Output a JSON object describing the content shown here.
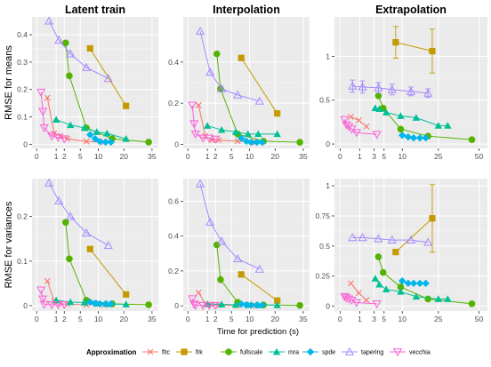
{
  "figure": {
    "xlabel": "Time for prediction (s)",
    "legend_title": "Approximation",
    "legend_position": "bottom"
  },
  "methods": [
    {
      "key": "fitc",
      "label": "fitc",
      "color": "#F8766D",
      "shape": "cross"
    },
    {
      "key": "frk",
      "label": "frk",
      "color": "#C49A00",
      "shape": "square"
    },
    {
      "key": "fullscale",
      "label": "fullscale",
      "color": "#53B400",
      "shape": "circle"
    },
    {
      "key": "mra",
      "label": "mra",
      "color": "#00C094",
      "shape": "triangle"
    },
    {
      "key": "spde",
      "label": "spde",
      "color": "#00B6EB",
      "shape": "diamond"
    },
    {
      "key": "tapering",
      "label": "tapering",
      "color": "#A58AFF",
      "shape": "triangle-open"
    },
    {
      "key": "vecchia",
      "label": "vecchia",
      "color": "#FB61D7",
      "shape": "triangle-down-open"
    }
  ],
  "chart_data": [
    {
      "type": "line",
      "col_title": "Latent train",
      "row_title": "RMSE for means",
      "x_scale": "sqrt",
      "x_ticks": [
        0,
        1,
        2,
        5,
        10,
        20,
        35
      ],
      "xlim": [
        0,
        36
      ],
      "y_ticks": [
        0.0,
        0.1,
        0.2,
        0.3,
        0.4
      ],
      "ylim": [
        -0.015,
        0.465
      ],
      "series": [
        {
          "method": "fitc",
          "x": [
            0.3,
            0.8,
            1.5,
            2.5,
            6.5,
            12
          ],
          "y": [
            0.17,
            0.04,
            0.03,
            0.02,
            0.01,
            0.008
          ]
        },
        {
          "method": "frk",
          "x": [
            7.5,
            21
          ],
          "y": [
            0.35,
            0.14
          ]
        },
        {
          "method": "fullscale",
          "x": [
            2.2,
            2.8,
            6.5,
            15,
            33
          ],
          "y": [
            0.37,
            0.25,
            0.06,
            0.02,
            0.008
          ]
        },
        {
          "method": "mra",
          "x": [
            1.0,
            3.0,
            6.0,
            9.5,
            13,
            21
          ],
          "y": [
            0.09,
            0.07,
            0.06,
            0.045,
            0.04,
            0.02
          ]
        },
        {
          "method": "spde",
          "x": [
            7.5,
            9,
            10.5,
            12.5,
            14.5
          ],
          "y": [
            0.035,
            0.02,
            0.01,
            0.008,
            0.008
          ]
        },
        {
          "method": "tapering",
          "x": [
            0.4,
            1.3,
            3.0,
            6.5,
            13.5
          ],
          "y": [
            0.45,
            0.38,
            0.33,
            0.28,
            0.24
          ]
        },
        {
          "method": "vecchia",
          "x": [
            0.05,
            0.1,
            0.15,
            0.6,
            1.2,
            2.0
          ],
          "y": [
            0.19,
            0.12,
            0.06,
            0.03,
            0.025,
            0.02
          ]
        }
      ]
    },
    {
      "type": "line",
      "col_title": "Interpolation",
      "row_title": "",
      "x_scale": "sqrt",
      "x_ticks": [
        0,
        1,
        2,
        5,
        10,
        20,
        35
      ],
      "xlim": [
        0,
        36
      ],
      "y_ticks": [
        0.0,
        0.2,
        0.4
      ],
      "ylim": [
        -0.02,
        0.62
      ],
      "series": [
        {
          "method": "fitc",
          "x": [
            0.3,
            0.8,
            1.5,
            2.5,
            6.5,
            12
          ],
          "y": [
            0.19,
            0.04,
            0.02,
            0.02,
            0.015,
            0.01
          ]
        },
        {
          "method": "frk",
          "x": [
            7.5,
            21
          ],
          "y": [
            0.42,
            0.15
          ]
        },
        {
          "method": "fullscale",
          "x": [
            2.2,
            2.8,
            6.5,
            15,
            33
          ],
          "y": [
            0.44,
            0.27,
            0.05,
            0.015,
            0.01
          ]
        },
        {
          "method": "mra",
          "x": [
            1.0,
            3.0,
            6.0,
            9.5,
            13,
            21
          ],
          "y": [
            0.09,
            0.07,
            0.06,
            0.05,
            0.05,
            0.05
          ]
        },
        {
          "method": "spde",
          "x": [
            7.5,
            9,
            10.5,
            12.5,
            14.5
          ],
          "y": [
            0.03,
            0.015,
            0.01,
            0.01,
            0.01
          ]
        },
        {
          "method": "tapering",
          "x": [
            0.4,
            1.3,
            3.0,
            6.5,
            13.5
          ],
          "y": [
            0.55,
            0.35,
            0.27,
            0.24,
            0.21
          ]
        },
        {
          "method": "vecchia",
          "x": [
            0.05,
            0.1,
            0.15,
            0.6,
            1.2,
            2.0
          ],
          "y": [
            0.19,
            0.1,
            0.05,
            0.03,
            0.03,
            0.025
          ]
        }
      ]
    },
    {
      "type": "line",
      "col_title": "Extrapolation",
      "row_title": "",
      "x_scale": "sqrt",
      "x_ticks": [
        0,
        1,
        3,
        5,
        10,
        25,
        50
      ],
      "xlim": [
        0,
        52
      ],
      "y_ticks": [
        0.0,
        0.5,
        1.0
      ],
      "ylim": [
        -0.05,
        1.45
      ],
      "series": [
        {
          "method": "fitc",
          "x": [
            0.3,
            0.9,
            1.8
          ],
          "y": [
            0.31,
            0.27,
            0.2
          ]
        },
        {
          "method": "frk",
          "x": [
            8,
            22
          ],
          "y": [
            1.16,
            1.06
          ],
          "y_err": [
            0.18,
            0.25
          ]
        },
        {
          "method": "fullscale",
          "x": [
            3.8,
            4.8,
            9.5,
            20,
            45
          ],
          "y": [
            0.55,
            0.41,
            0.17,
            0.09,
            0.05
          ]
        },
        {
          "method": "mra",
          "x": [
            3.2,
            4.0,
            5.5,
            9.5,
            15,
            25,
            30
          ],
          "y": [
            0.41,
            0.4,
            0.36,
            0.32,
            0.3,
            0.21,
            0.21
          ]
        },
        {
          "method": "spde",
          "x": [
            10,
            12,
            14,
            16.5,
            19
          ],
          "y": [
            0.1,
            0.08,
            0.07,
            0.07,
            0.07
          ]
        },
        {
          "method": "tapering",
          "x": [
            0.4,
            1.3,
            3.8,
            7.0,
            13,
            20
          ],
          "y": [
            0.66,
            0.65,
            0.64,
            0.62,
            0.6,
            0.58
          ],
          "y_err": [
            0.07,
            0.07,
            0.06,
            0.06,
            0.05,
            0.05
          ]
        },
        {
          "method": "vecchia",
          "x": [
            0.05,
            0.1,
            0.2,
            0.35,
            0.7,
            3.5
          ],
          "y": [
            0.28,
            0.22,
            0.2,
            0.17,
            0.13,
            0.11
          ]
        }
      ]
    },
    {
      "type": "line",
      "col_title": "",
      "row_title": "RMSE for variances",
      "x_scale": "sqrt",
      "x_ticks": [
        0,
        1,
        2,
        5,
        10,
        20,
        35
      ],
      "xlim": [
        0,
        36
      ],
      "y_ticks": [
        0.0,
        0.1,
        0.2
      ],
      "ylim": [
        -0.012,
        0.285
      ],
      "series": [
        {
          "method": "fitc",
          "x": [
            0.3,
            0.8,
            1.5,
            2.5,
            6.5,
            12
          ],
          "y": [
            0.055,
            0.01,
            0.005,
            0.003,
            0.002,
            0.002
          ]
        },
        {
          "method": "frk",
          "x": [
            7.5,
            21
          ],
          "y": [
            0.127,
            0.025
          ]
        },
        {
          "method": "fullscale",
          "x": [
            2.2,
            2.8,
            6.5,
            15,
            33
          ],
          "y": [
            0.187,
            0.105,
            0.012,
            0.004,
            0.002
          ]
        },
        {
          "method": "mra",
          "x": [
            1.0,
            3.0,
            6.0,
            9.5,
            13,
            21
          ],
          "y": [
            0.012,
            0.008,
            0.007,
            0.005,
            0.004,
            0.003
          ]
        },
        {
          "method": "spde",
          "x": [
            7.5,
            9,
            10.5,
            12.5,
            14.5
          ],
          "y": [
            0.008,
            0.005,
            0.004,
            0.004,
            0.004
          ]
        },
        {
          "method": "tapering",
          "x": [
            0.4,
            1.3,
            3.0,
            6.5,
            13.5
          ],
          "y": [
            0.275,
            0.235,
            0.2,
            0.163,
            0.135
          ]
        },
        {
          "method": "vecchia",
          "x": [
            0.05,
            0.1,
            0.15,
            0.6,
            1.2,
            2.0
          ],
          "y": [
            0.035,
            0.015,
            0.003,
            0.002,
            0.002,
            0.002
          ]
        }
      ]
    },
    {
      "type": "line",
      "col_title": "",
      "row_title": "",
      "x_scale": "sqrt",
      "x_ticks": [
        0,
        1,
        2,
        5,
        10,
        20,
        35
      ],
      "xlim": [
        0,
        36
      ],
      "y_ticks": [
        0.0,
        0.2,
        0.4,
        0.6
      ],
      "ylim": [
        -0.03,
        0.73
      ],
      "series": [
        {
          "method": "fitc",
          "x": [
            0.3,
            0.8,
            1.5,
            2.5,
            6.5,
            12
          ],
          "y": [
            0.075,
            0.01,
            0.005,
            0.003,
            0.002,
            0.002
          ]
        },
        {
          "method": "frk",
          "x": [
            7.5,
            21
          ],
          "y": [
            0.18,
            0.03
          ]
        },
        {
          "method": "fullscale",
          "x": [
            2.2,
            2.8,
            6.5,
            15,
            33
          ],
          "y": [
            0.35,
            0.15,
            0.02,
            0.005,
            0.002
          ]
        },
        {
          "method": "mra",
          "x": [
            1.0,
            3.0,
            6.0,
            9.5,
            13,
            21
          ],
          "y": [
            0.01,
            0.008,
            0.006,
            0.005,
            0.004,
            0.004
          ]
        },
        {
          "method": "spde",
          "x": [
            7.5,
            9,
            10.5,
            12.5,
            14.5
          ],
          "y": [
            0.01,
            0.005,
            0.004,
            0.004,
            0.004
          ]
        },
        {
          "method": "tapering",
          "x": [
            0.4,
            1.3,
            3.0,
            6.5,
            13.5
          ],
          "y": [
            0.7,
            0.48,
            0.37,
            0.27,
            0.21
          ]
        },
        {
          "method": "vecchia",
          "x": [
            0.05,
            0.1,
            0.15,
            0.6,
            1.2,
            2.0
          ],
          "y": [
            0.04,
            0.01,
            0.003,
            0.002,
            0.002,
            0.002
          ]
        }
      ]
    },
    {
      "type": "line",
      "col_title": "",
      "row_title": "",
      "x_scale": "sqrt",
      "x_ticks": [
        0,
        1,
        3,
        5,
        10,
        25,
        50
      ],
      "xlim": [
        0,
        52
      ],
      "y_ticks": [
        0.0,
        0.25,
        0.5,
        0.75,
        1.0
      ],
      "ylim": [
        -0.04,
        1.06
      ],
      "series": [
        {
          "method": "fitc",
          "x": [
            0.3,
            0.9,
            1.8
          ],
          "y": [
            0.19,
            0.11,
            0.05
          ]
        },
        {
          "method": "frk",
          "x": [
            8,
            22
          ],
          "y": [
            0.45,
            0.73
          ],
          "y_err": [
            0.02,
            0.28
          ]
        },
        {
          "method": "fullscale",
          "x": [
            3.8,
            4.8,
            9.5,
            20,
            45
          ],
          "y": [
            0.41,
            0.28,
            0.16,
            0.06,
            0.02
          ]
        },
        {
          "method": "mra",
          "x": [
            3.2,
            4.0,
            5.5,
            9.5,
            15,
            25,
            30
          ],
          "y": [
            0.23,
            0.18,
            0.14,
            0.12,
            0.08,
            0.06,
            0.06
          ]
        },
        {
          "method": "spde",
          "x": [
            10,
            12,
            14,
            16.5,
            19
          ],
          "y": [
            0.21,
            0.19,
            0.19,
            0.19,
            0.19
          ]
        },
        {
          "method": "tapering",
          "x": [
            0.4,
            1.3,
            3.8,
            7.0,
            13,
            20
          ],
          "y": [
            0.57,
            0.57,
            0.56,
            0.55,
            0.55,
            0.53
          ]
        },
        {
          "method": "vecchia",
          "x": [
            0.05,
            0.1,
            0.2,
            0.35,
            0.7,
            3.5
          ],
          "y": [
            0.08,
            0.07,
            0.06,
            0.05,
            0.03,
            0.02
          ]
        }
      ]
    }
  ]
}
